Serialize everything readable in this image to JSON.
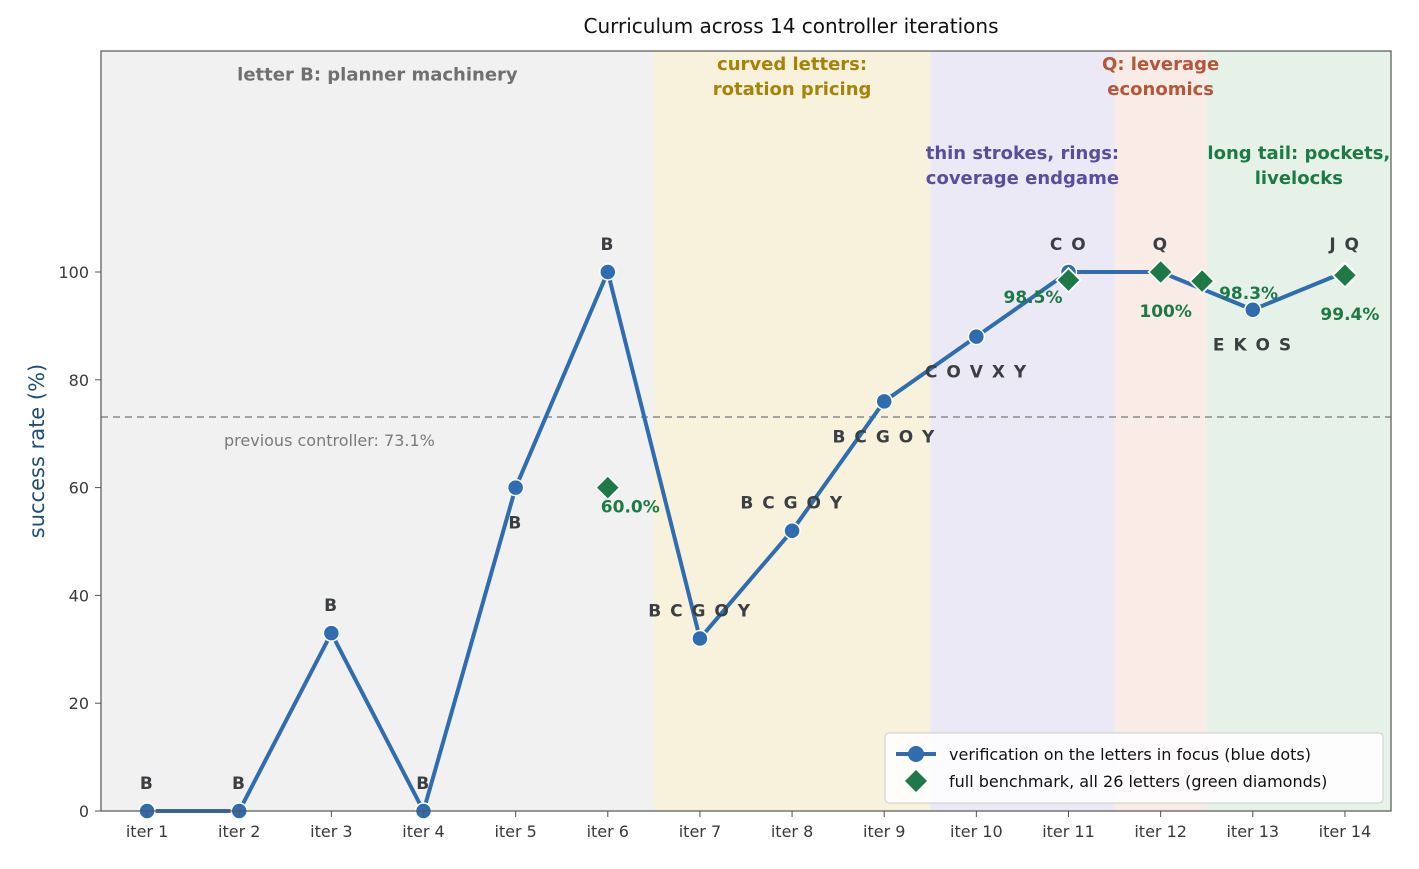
{
  "chart_data": {
    "type": "line",
    "title": "Curriculum across 14 controller iterations",
    "xlabel": "",
    "ylabel": "success rate (%)",
    "ylim": [
      0,
      141
    ],
    "yticks": [
      0,
      20,
      40,
      60,
      80,
      100
    ],
    "grid": false,
    "legend_position": "bottom-right",
    "categories": [
      "iter 1",
      "iter 2",
      "iter 3",
      "iter 4",
      "iter 5",
      "iter 6",
      "iter 7",
      "iter 8",
      "iter 9",
      "iter 10",
      "iter 11",
      "iter 12",
      "iter 13",
      "iter 14"
    ],
    "series": [
      {
        "name": "verification on the letters in focus (blue dots)",
        "color": "#2f6db0",
        "marker": "circle",
        "values": [
          0,
          0,
          33,
          0,
          60,
          100,
          32,
          52,
          76,
          88,
          100,
          100,
          93,
          100
        ],
        "point_labels": [
          "B",
          "B",
          "B",
          "B",
          "B",
          "B",
          "B C G O Y",
          "B C G O Y",
          "B C G O Y",
          "C O V X Y",
          "C O",
          "Q",
          "E K O S",
          "J Q"
        ],
        "label_side": [
          "above",
          "above",
          "above",
          "above",
          "below",
          "above",
          "above",
          "above",
          "below",
          "below",
          "above",
          "above",
          "below",
          "above"
        ]
      },
      {
        "name": "full benchmark, all 26 letters (green diamonds)",
        "color": "#1d7a46",
        "marker": "diamond",
        "points": [
          {
            "x": 6,
            "y": 60.0,
            "label": "60.0%",
            "label_pos": "below-right"
          },
          {
            "x": 11,
            "y": 98.5,
            "label": "98.5%",
            "label_pos": "left"
          },
          {
            "x": 12,
            "y": 100,
            "label": "100%",
            "label_pos": "below"
          },
          {
            "x": 12.45,
            "y": 98.3,
            "label": "98.3%",
            "label_pos": "right"
          },
          {
            "x": 14,
            "y": 99.4,
            "label": "99.4%",
            "label_pos": "below"
          }
        ]
      }
    ],
    "reference_line": {
      "y": 73.1,
      "label": "previous controller: 73.1%",
      "color": "#999999"
    },
    "regions": [
      {
        "x_from": 0.5,
        "x_to": 6.5,
        "color": "#f1f1f1",
        "label_lines": [
          "letter B: planner machinery"
        ],
        "label_color": "#707070",
        "label_x": 3.5,
        "label_y": 135.5
      },
      {
        "x_from": 6.5,
        "x_to": 9.5,
        "color": "#f8f2dc",
        "label_lines": [
          "curved letters:",
          "rotation pricing"
        ],
        "label_color": "#a68309",
        "label_x": 8.0,
        "label_y": 137.5
      },
      {
        "x_from": 9.5,
        "x_to": 11.5,
        "color": "#ebe9f6",
        "label_lines": [
          "thin strokes, rings:",
          "coverage endgame"
        ],
        "label_color": "#5a4d9c",
        "label_x": 10.5,
        "label_y": 121.0
      },
      {
        "x_from": 11.5,
        "x_to": 12.5,
        "color": "#f9ebe6",
        "label_lines": [
          "Q: leverage",
          "economics"
        ],
        "label_color": "#b5573b",
        "label_x": 12.0,
        "label_y": 137.5
      },
      {
        "x_from": 12.5,
        "x_to": 14.5,
        "color": "#e6f2e7",
        "label_lines": [
          "long tail: pockets,",
          "livelocks"
        ],
        "label_color": "#1d7a46",
        "label_x": 13.5,
        "label_y": 121.0
      }
    ],
    "legend": [
      {
        "label": "verification on the letters in focus (blue dots)",
        "marker": "circle-line",
        "color": "#2f6db0"
      },
      {
        "label": "full benchmark, all 26 letters (green diamonds)",
        "marker": "diamond",
        "color": "#1d7a46"
      }
    ]
  }
}
